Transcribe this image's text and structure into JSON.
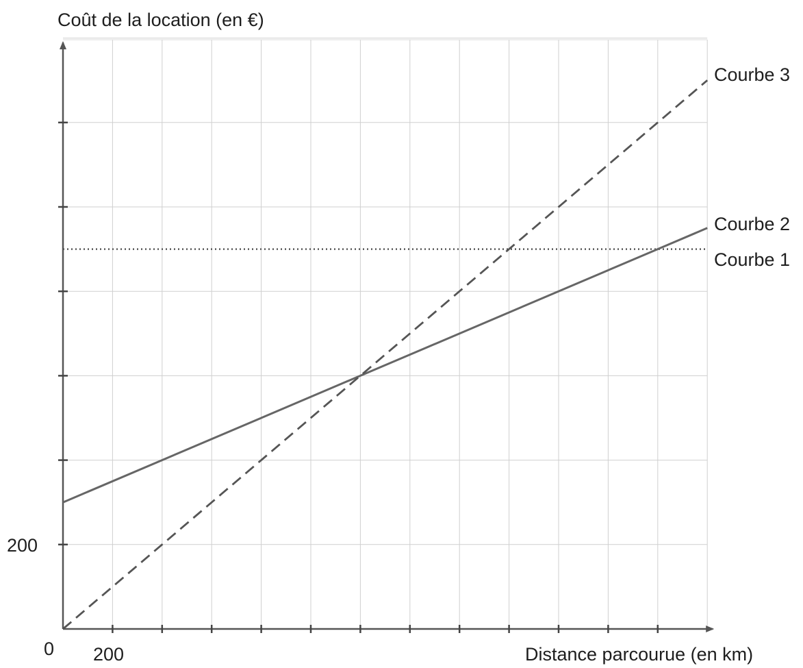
{
  "chart_data": {
    "type": "line",
    "ylabel": "Coût de la location (en €)",
    "xlabel": "Distance parcourue (en km)",
    "origin_label": "0",
    "x_tick_labeled": {
      "value": 200,
      "label": "200"
    },
    "y_tick_labeled": {
      "value": 200,
      "label": "200"
    },
    "x_tick_step": 200,
    "y_tick_step": 200,
    "xlim": [
      0,
      2600
    ],
    "ylim": [
      0,
      1400
    ],
    "grid": true,
    "series": [
      {
        "name": "Courbe 1",
        "style": "dotted",
        "color": "#555555",
        "x": [
          0,
          2600
        ],
        "y": [
          900,
          900
        ]
      },
      {
        "name": "Courbe 2",
        "style": "solid",
        "color": "#666666",
        "x": [
          0,
          1200,
          2400,
          2600
        ],
        "y": [
          300,
          600,
          900,
          950
        ]
      },
      {
        "name": "Courbe 3",
        "style": "dashed",
        "color": "#555555",
        "x": [
          0,
          400,
          1200,
          1800,
          2400,
          2600
        ],
        "y": [
          0,
          200,
          600,
          900,
          1200,
          1300
        ]
      }
    ]
  }
}
